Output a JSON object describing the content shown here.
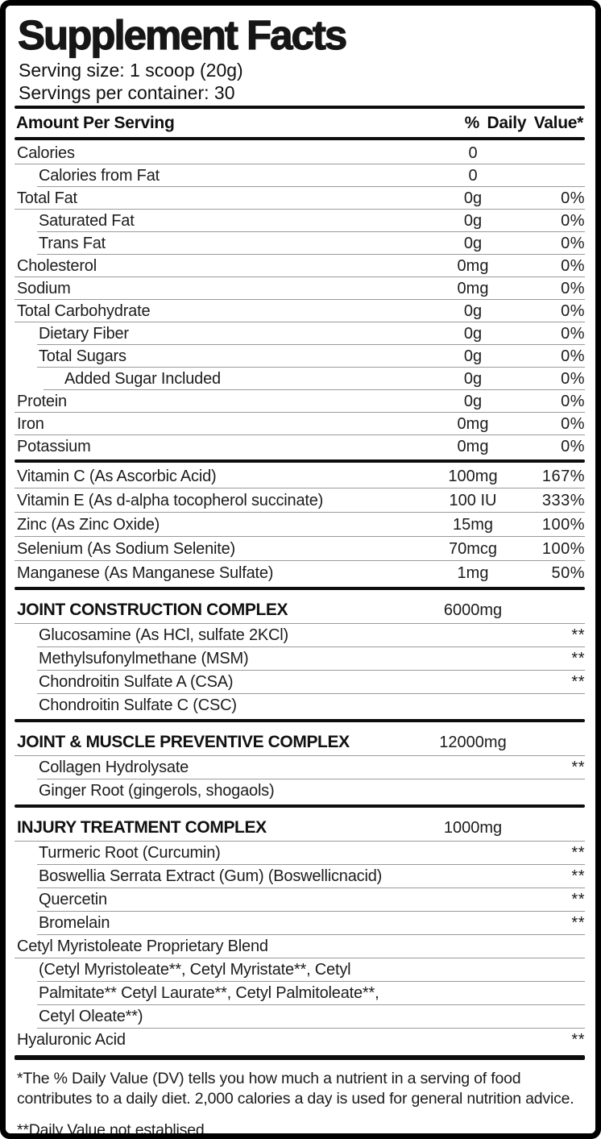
{
  "title": "Supplement Facts",
  "serving_size": "Serving size: 1 scoop (20g)",
  "servings_per_container": "Servings per container: 30",
  "header": {
    "left": "Amount Per Serving",
    "right": "% Daily Value*"
  },
  "colors": {
    "text": "#1c1c1c",
    "bar": "#0d0d0d",
    "hairline": "#9a9a9a",
    "background": "#ffffff",
    "border": "#000000"
  },
  "sections": [
    {
      "name": "macronutrients",
      "rows": [
        {
          "label": "Calories",
          "amount": "0",
          "dv": "",
          "indent": 0
        },
        {
          "label": "Calories from Fat",
          "amount": "0",
          "dv": "",
          "indent": 1
        },
        {
          "label": "Total Fat",
          "amount": "0g",
          "dv": "0%",
          "indent": 0
        },
        {
          "label": "Saturated Fat",
          "amount": "0g",
          "dv": "0%",
          "indent": 1
        },
        {
          "label": "Trans Fat",
          "amount": "0g",
          "dv": "0%",
          "indent": 1
        },
        {
          "label": "Cholesterol",
          "amount": "0mg",
          "dv": "0%",
          "indent": 0
        },
        {
          "label": "Sodium",
          "amount": "0mg",
          "dv": "0%",
          "indent": 0
        },
        {
          "label": "Total Carbohydrate",
          "amount": "0g",
          "dv": "0%",
          "indent": 0
        },
        {
          "label": "Dietary Fiber",
          "amount": "0g",
          "dv": "0%",
          "indent": 1
        },
        {
          "label": "Total Sugars",
          "amount": "0g",
          "dv": "0%",
          "indent": 1
        },
        {
          "label": "Added Sugar Included",
          "amount": "0g",
          "dv": "0%",
          "indent": 2
        },
        {
          "label": "Protein",
          "amount": "0g",
          "dv": "0%",
          "indent": 0
        },
        {
          "label": "Iron",
          "amount": "0mg",
          "dv": "0%",
          "indent": 0
        },
        {
          "label": "Potassium",
          "amount": "0mg",
          "dv": "0%",
          "indent": 0
        }
      ]
    },
    {
      "name": "vitamins-minerals",
      "rows": [
        {
          "label": "Vitamin C (As Ascorbic Acid)",
          "amount": "100mg",
          "dv": "167%",
          "indent": 0,
          "vit": true
        },
        {
          "label": "Vitamin E (As d-alpha tocopherol succinate)",
          "amount": "100 IU",
          "dv": "333%",
          "indent": 0,
          "vit": true
        },
        {
          "label": "Zinc (As Zinc Oxide)",
          "amount": "15mg",
          "dv": "100%",
          "indent": 0,
          "vit": true
        },
        {
          "label": "Selenium (As Sodium Selenite)",
          "amount": "70mcg",
          "dv": "100%",
          "indent": 0,
          "vit": true
        },
        {
          "label": "Manganese (As Manganese Sulfate)",
          "amount": "1mg",
          "dv": "50%",
          "indent": 0,
          "vit": true
        }
      ]
    },
    {
      "name": "joint-construction-complex",
      "rows": [
        {
          "label": "JOINT CONSTRUCTION COMPLEX",
          "amount": "6000mg",
          "dv": "",
          "indent": 0,
          "bold": true
        },
        {
          "label": "Glucosamine (As HCl, sulfate 2KCl)",
          "amount": "",
          "dv": "**",
          "indent": 1,
          "sub": true
        },
        {
          "label": "Methylsufonylmethane (MSM)",
          "amount": "",
          "dv": "**",
          "indent": 1,
          "sub": true
        },
        {
          "label": "Chondroitin Sulfate A (CSA)",
          "amount": "",
          "dv": "**",
          "indent": 1,
          "sub": true
        },
        {
          "label": "Chondroitin Sulfate C (CSC)",
          "amount": "",
          "dv": "",
          "indent": 1,
          "sub": true
        }
      ]
    },
    {
      "name": "joint-muscle-preventive-complex",
      "rows": [
        {
          "label": "JOINT & MUSCLE PREVENTIVE COMPLEX",
          "amount": "12000mg",
          "dv": "",
          "indent": 0,
          "bold": true
        },
        {
          "label": "Collagen Hydrolysate",
          "amount": "",
          "dv": "**",
          "indent": 1,
          "sub": true
        },
        {
          "label": "Ginger Root (gingerols, shogaols)",
          "amount": "",
          "dv": "",
          "indent": 1,
          "sub": true
        }
      ]
    },
    {
      "name": "injury-treatment-complex",
      "rows": [
        {
          "label": "INJURY TREATMENT COMPLEX",
          "amount": "1000mg",
          "dv": "",
          "indent": 0,
          "bold": true
        },
        {
          "label": "Turmeric Root (Curcumin)",
          "amount": "",
          "dv": "**",
          "indent": 1,
          "sub": true
        },
        {
          "label": "Boswellia Serrata Extract (Gum) (Boswellicnacid)",
          "amount": "",
          "dv": "**",
          "indent": 1,
          "sub": true
        },
        {
          "label": "Quercetin",
          "amount": "",
          "dv": "**",
          "indent": 1,
          "sub": true
        },
        {
          "label": "Bromelain",
          "amount": "",
          "dv": "**",
          "indent": 1,
          "sub": true
        },
        {
          "label": "Cetyl Myristoleate Proprietary Blend",
          "amount": "",
          "dv": "",
          "indent": 0,
          "sub": true
        },
        {
          "label": "(Cetyl Myristoleate**, Cetyl Myristate**,  Cetyl",
          "amount": "",
          "dv": "",
          "indent": 1,
          "sub": true
        },
        {
          "label": "Palmitate** Cetyl Laurate**, Cetyl Palmitoleate**,",
          "amount": "",
          "dv": "",
          "indent": 1,
          "sub": true
        },
        {
          "label": "Cetyl Oleate**)",
          "amount": "",
          "dv": "",
          "indent": 1,
          "sub": true
        },
        {
          "label": "Hyaluronic Acid",
          "amount": "",
          "dv": "**",
          "indent": 0,
          "sub": true
        }
      ]
    }
  ],
  "footnotes": [
    "*The % Daily Value (DV) tells you how much a nutrient in a serving of food contributes to a daily diet. 2,000 calories a day is used for general nutrition advice.",
    "**Daily Value not establised."
  ]
}
